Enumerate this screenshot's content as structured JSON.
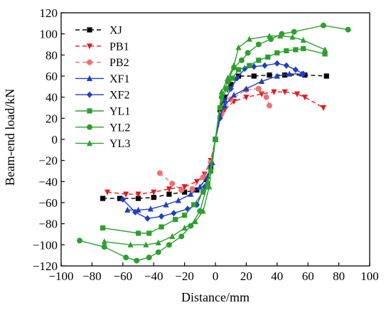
{
  "chart_data": {
    "type": "line",
    "title": "",
    "xlabel": "Distance/mm",
    "ylabel": "Beam-end load/kN",
    "xlim": [
      -100,
      100
    ],
    "ylim": [
      -120,
      120
    ],
    "x_ticks": [
      -100,
      -80,
      -60,
      -40,
      -20,
      0,
      20,
      40,
      60,
      80,
      100
    ],
    "y_ticks": [
      -120,
      -100,
      -80,
      -60,
      -40,
      -20,
      0,
      20,
      40,
      60,
      80,
      100,
      120
    ],
    "grid": false,
    "legend_position": "top-left",
    "series": [
      {
        "name": "XJ",
        "color": "#000000",
        "dash": "6,4",
        "marker": "square",
        "points": [
          [
            -73,
            -56
          ],
          [
            -62,
            -56
          ],
          [
            -50,
            -56
          ],
          [
            -40,
            -55
          ],
          [
            -30,
            -52
          ],
          [
            -20,
            -50
          ],
          [
            -12,
            -48
          ],
          [
            -6,
            -38
          ],
          [
            -3,
            -27
          ],
          [
            0,
            0
          ],
          [
            3,
            28
          ],
          [
            6,
            40
          ],
          [
            10,
            52
          ],
          [
            15,
            60
          ],
          [
            25,
            60
          ],
          [
            35,
            61
          ],
          [
            45,
            61
          ],
          [
            58,
            61
          ],
          [
            72,
            60
          ]
        ]
      },
      {
        "name": "PB1",
        "color": "#e31a1c",
        "dash": "6,4",
        "marker": "triangle-down",
        "points": [
          [
            -70,
            -50
          ],
          [
            -58,
            -52
          ],
          [
            -50,
            -52
          ],
          [
            -40,
            -50
          ],
          [
            -30,
            -47
          ],
          [
            -20,
            -45
          ],
          [
            -12,
            -40
          ],
          [
            -7,
            -33
          ],
          [
            -3,
            -20
          ],
          [
            0,
            0
          ],
          [
            3,
            20
          ],
          [
            6,
            28
          ],
          [
            12,
            36
          ],
          [
            20,
            40
          ],
          [
            30,
            43
          ],
          [
            38,
            45
          ],
          [
            45,
            45
          ],
          [
            53,
            43
          ],
          [
            58,
            40
          ],
          [
            70,
            30
          ]
        ]
      },
      {
        "name": "PB2",
        "color": "#f07070",
        "dash": "6,4",
        "marker": "circle",
        "points": [
          [
            -36,
            -32
          ],
          [
            -28,
            -42
          ],
          [
            -22,
            -48
          ],
          [
            -15,
            -47
          ],
          [
            -8,
            -36
          ],
          [
            -3,
            -22
          ],
          [
            0,
            0
          ],
          [
            4,
            24
          ],
          [
            10,
            38
          ],
          [
            20,
            47
          ],
          [
            28,
            48
          ],
          [
            33,
            40
          ],
          [
            35,
            32
          ]
        ]
      },
      {
        "name": "XF1",
        "color": "#1f3fbf",
        "dash": "",
        "marker": "triangle-up",
        "points": [
          [
            -57,
            -67
          ],
          [
            -50,
            -67
          ],
          [
            -42,
            -66
          ],
          [
            -32,
            -62
          ],
          [
            -24,
            -58
          ],
          [
            -16,
            -52
          ],
          [
            -10,
            -45
          ],
          [
            -5,
            -35
          ],
          [
            -2,
            -22
          ],
          [
            0,
            0
          ],
          [
            3,
            22
          ],
          [
            6,
            32
          ],
          [
            12,
            42
          ],
          [
            20,
            48
          ],
          [
            30,
            55
          ],
          [
            40,
            60
          ],
          [
            48,
            62
          ],
          [
            56,
            62
          ]
        ]
      },
      {
        "name": "XF2",
        "color": "#1f3fbf",
        "dash": "",
        "marker": "diamond",
        "points": [
          [
            -60,
            -57
          ],
          [
            -52,
            -69
          ],
          [
            -44,
            -75
          ],
          [
            -35,
            -73
          ],
          [
            -27,
            -70
          ],
          [
            -18,
            -66
          ],
          [
            -12,
            -62
          ],
          [
            -7,
            -45
          ],
          [
            -3,
            -25
          ],
          [
            0,
            0
          ],
          [
            3,
            20
          ],
          [
            6,
            36
          ],
          [
            10,
            48
          ],
          [
            14,
            58
          ],
          [
            19,
            67
          ],
          [
            25,
            69
          ],
          [
            32,
            70
          ],
          [
            40,
            72
          ],
          [
            46,
            70
          ],
          [
            52,
            66
          ],
          [
            57,
            62
          ]
        ]
      },
      {
        "name": "YL1",
        "color": "#2ca02c",
        "dash": "",
        "marker": "square",
        "points": [
          [
            -73,
            -84
          ],
          [
            -50,
            -89
          ],
          [
            -43,
            -89
          ],
          [
            -35,
            -83
          ],
          [
            -26,
            -76
          ],
          [
            -20,
            -72
          ],
          [
            -14,
            -62
          ],
          [
            -8,
            -50
          ],
          [
            -3,
            -30
          ],
          [
            0,
            0
          ],
          [
            3,
            30
          ],
          [
            7,
            48
          ],
          [
            11,
            58
          ],
          [
            15,
            66
          ],
          [
            22,
            70
          ],
          [
            28,
            75
          ],
          [
            34,
            78
          ],
          [
            40,
            82
          ],
          [
            46,
            84
          ],
          [
            52,
            85
          ],
          [
            57,
            86
          ],
          [
            71,
            81
          ]
        ]
      },
      {
        "name": "YL2",
        "color": "#2ca02c",
        "dash": "",
        "marker": "circle",
        "points": [
          [
            -88,
            -96
          ],
          [
            -72,
            -102
          ],
          [
            -58,
            -112
          ],
          [
            -51,
            -115
          ],
          [
            -43,
            -112
          ],
          [
            -37,
            -107
          ],
          [
            -30,
            -100
          ],
          [
            -22,
            -92
          ],
          [
            -16,
            -82
          ],
          [
            -10,
            -68
          ],
          [
            -5,
            -42
          ],
          [
            0,
            0
          ],
          [
            4,
            40
          ],
          [
            8,
            55
          ],
          [
            12,
            68
          ],
          [
            17,
            75
          ],
          [
            21,
            82
          ],
          [
            28,
            90
          ],
          [
            36,
            95
          ],
          [
            43,
            100
          ],
          [
            51,
            102
          ],
          [
            70,
            108
          ],
          [
            86,
            104
          ]
        ]
      },
      {
        "name": "YL3",
        "color": "#2ca02c",
        "dash": "",
        "marker": "triangle-up",
        "points": [
          [
            -72,
            -97
          ],
          [
            -55,
            -100
          ],
          [
            -45,
            -100
          ],
          [
            -37,
            -98
          ],
          [
            -28,
            -92
          ],
          [
            -20,
            -84
          ],
          [
            -13,
            -78
          ],
          [
            -8,
            -68
          ],
          [
            -4,
            -45
          ],
          [
            0,
            0
          ],
          [
            4,
            45
          ],
          [
            8,
            58
          ],
          [
            12,
            70
          ],
          [
            15,
            87
          ],
          [
            22,
            95
          ],
          [
            35,
            98
          ],
          [
            42,
            98
          ],
          [
            50,
            97
          ],
          [
            57,
            94
          ],
          [
            71,
            85
          ]
        ]
      }
    ]
  }
}
